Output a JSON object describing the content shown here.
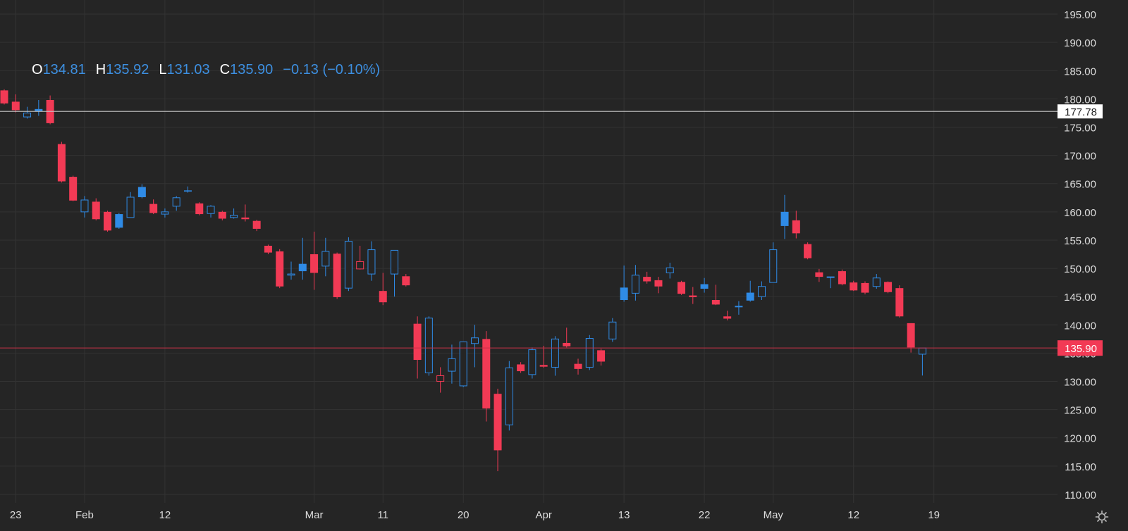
{
  "ohlc_header": {
    "o_label": "O",
    "o_value": "134.81",
    "h_label": "H",
    "h_value": "135.92",
    "l_label": "L",
    "l_value": "131.03",
    "c_label": "C",
    "c_value": "135.90",
    "change": "−0.13 (−0.10%)"
  },
  "colors": {
    "background": "#252525",
    "grid": "#333333",
    "up": "#2f8be6",
    "down": "#f23a55",
    "axis_text": "#dddddd",
    "ref_line": "#c8c8c8",
    "price_line": "#c83248"
  },
  "icons": {
    "settings": "gear-icon"
  },
  "chart_data": {
    "type": "candlestick",
    "ylim": [
      108.5,
      197.5
    ],
    "y_ticks": [
      "110.00",
      "115.00",
      "120.00",
      "125.00",
      "130.00",
      "135.00",
      "140.00",
      "145.00",
      "150.00",
      "155.00",
      "160.00",
      "165.00",
      "170.00",
      "175.00",
      "180.00",
      "185.00",
      "190.00",
      "195.00"
    ],
    "x_ticks": [
      {
        "label": "23",
        "index": 1
      },
      {
        "label": "Feb",
        "index": 7
      },
      {
        "label": "12",
        "index": 14
      },
      {
        "label": "Mar",
        "index": 27
      },
      {
        "label": "11",
        "index": 33
      },
      {
        "label": "20",
        "index": 40
      },
      {
        "label": "Apr",
        "index": 47
      },
      {
        "label": "13",
        "index": 54
      },
      {
        "label": "22",
        "index": 61
      },
      {
        "label": "May",
        "index": 67
      },
      {
        "label": "12",
        "index": 74
      },
      {
        "label": "19",
        "index": 81
      }
    ],
    "reference_line": {
      "value": 177.78,
      "label": "177.78"
    },
    "last_price": {
      "value": 135.9,
      "label": "135.90"
    },
    "candles": [
      {
        "o": 181.5,
        "h": 181.7,
        "l": 179.0,
        "c": 179.2,
        "filled": true
      },
      {
        "o": 179.5,
        "h": 180.8,
        "l": 177.6,
        "c": 178.0,
        "filled": true
      },
      {
        "o": 176.8,
        "h": 178.6,
        "l": 176.5,
        "c": 177.5,
        "filled": false
      },
      {
        "o": 177.8,
        "h": 179.8,
        "l": 177.0,
        "c": 178.2,
        "filled": true
      },
      {
        "o": 179.8,
        "h": 180.6,
        "l": 175.5,
        "c": 175.7,
        "filled": true
      },
      {
        "o": 172.0,
        "h": 172.4,
        "l": 165.2,
        "c": 165.4,
        "filled": true
      },
      {
        "o": 166.2,
        "h": 166.4,
        "l": 161.9,
        "c": 162.0,
        "filled": true
      },
      {
        "o": 160.0,
        "h": 162.8,
        "l": 159.0,
        "c": 162.1,
        "filled": false
      },
      {
        "o": 161.8,
        "h": 162.4,
        "l": 158.5,
        "c": 158.7,
        "filled": true
      },
      {
        "o": 160.0,
        "h": 160.2,
        "l": 156.5,
        "c": 156.7,
        "filled": true
      },
      {
        "o": 157.2,
        "h": 159.8,
        "l": 157.0,
        "c": 159.6,
        "filled": true
      },
      {
        "o": 159.0,
        "h": 163.5,
        "l": 159.0,
        "c": 162.6,
        "filled": false
      },
      {
        "o": 162.6,
        "h": 164.9,
        "l": 162.4,
        "c": 164.4,
        "filled": true
      },
      {
        "o": 161.4,
        "h": 162.2,
        "l": 159.6,
        "c": 159.8,
        "filled": true
      },
      {
        "o": 159.6,
        "h": 160.6,
        "l": 159.0,
        "c": 160.0,
        "filled": false
      },
      {
        "o": 161.0,
        "h": 162.8,
        "l": 160.2,
        "c": 162.5,
        "filled": false
      },
      {
        "o": 163.6,
        "h": 164.5,
        "l": 163.4,
        "c": 163.8,
        "filled": true
      },
      {
        "o": 161.5,
        "h": 161.7,
        "l": 159.4,
        "c": 159.6,
        "filled": true
      },
      {
        "o": 159.7,
        "h": 161.2,
        "l": 159.0,
        "c": 161.0,
        "filled": false
      },
      {
        "o": 160.0,
        "h": 160.2,
        "l": 158.5,
        "c": 158.8,
        "filled": true
      },
      {
        "o": 159.0,
        "h": 160.6,
        "l": 158.8,
        "c": 159.4,
        "filled": false
      },
      {
        "o": 159.0,
        "h": 161.3,
        "l": 158.3,
        "c": 158.7,
        "filled": true
      },
      {
        "o": 158.4,
        "h": 158.6,
        "l": 156.6,
        "c": 157.0,
        "filled": true
      },
      {
        "o": 154.0,
        "h": 154.2,
        "l": 152.5,
        "c": 152.8,
        "filled": true
      },
      {
        "o": 153.0,
        "h": 153.4,
        "l": 146.5,
        "c": 146.8,
        "filled": true
      },
      {
        "o": 148.8,
        "h": 151.2,
        "l": 148.0,
        "c": 149.0,
        "filled": false
      },
      {
        "o": 149.5,
        "h": 155.4,
        "l": 148.0,
        "c": 150.8,
        "filled": true
      },
      {
        "o": 152.5,
        "h": 156.5,
        "l": 146.2,
        "c": 149.2,
        "filled": true
      },
      {
        "o": 150.4,
        "h": 155.4,
        "l": 148.6,
        "c": 153.0,
        "filled": false
      },
      {
        "o": 152.6,
        "h": 152.8,
        "l": 144.6,
        "c": 144.9,
        "filled": true
      },
      {
        "o": 146.5,
        "h": 155.5,
        "l": 146.0,
        "c": 154.8,
        "filled": false
      },
      {
        "o": 151.2,
        "h": 154.0,
        "l": 149.8,
        "c": 149.9,
        "filled": false
      },
      {
        "o": 149.0,
        "h": 154.8,
        "l": 147.8,
        "c": 153.3,
        "filled": false
      },
      {
        "o": 146.0,
        "h": 149.2,
        "l": 143.5,
        "c": 144.0,
        "filled": true
      },
      {
        "o": 149.0,
        "h": 153.2,
        "l": 145.0,
        "c": 153.2,
        "filled": false
      },
      {
        "o": 148.6,
        "h": 149.0,
        "l": 146.8,
        "c": 147.0,
        "filled": true
      },
      {
        "o": 140.2,
        "h": 141.5,
        "l": 130.5,
        "c": 133.8,
        "filled": true
      },
      {
        "o": 131.5,
        "h": 141.5,
        "l": 131.0,
        "c": 141.2,
        "filled": false
      },
      {
        "o": 131.0,
        "h": 132.5,
        "l": 128.0,
        "c": 130.0,
        "filled": false
      },
      {
        "o": 131.8,
        "h": 136.5,
        "l": 129.6,
        "c": 134.0,
        "filled": false
      },
      {
        "o": 129.2,
        "h": 137.0,
        "l": 129.0,
        "c": 137.0,
        "filled": false
      },
      {
        "o": 136.7,
        "h": 140.0,
        "l": 132.5,
        "c": 137.7,
        "filled": false
      },
      {
        "o": 137.5,
        "h": 138.9,
        "l": 122.9,
        "c": 125.2,
        "filled": true
      },
      {
        "o": 127.8,
        "h": 128.7,
        "l": 114.1,
        "c": 117.8,
        "filled": true
      },
      {
        "o": 122.3,
        "h": 133.6,
        "l": 121.3,
        "c": 132.4,
        "filled": false
      },
      {
        "o": 133.0,
        "h": 133.4,
        "l": 131.5,
        "c": 131.8,
        "filled": true
      },
      {
        "o": 131.2,
        "h": 136.0,
        "l": 130.5,
        "c": 135.6,
        "filled": false
      },
      {
        "o": 132.9,
        "h": 136.3,
        "l": 132.4,
        "c": 132.6,
        "filled": true
      },
      {
        "o": 132.5,
        "h": 138.0,
        "l": 131.0,
        "c": 137.5,
        "filled": false
      },
      {
        "o": 136.8,
        "h": 139.5,
        "l": 136.0,
        "c": 136.2,
        "filled": true
      },
      {
        "o": 133.1,
        "h": 134.0,
        "l": 131.2,
        "c": 132.2,
        "filled": true
      },
      {
        "o": 132.5,
        "h": 138.2,
        "l": 132.0,
        "c": 137.6,
        "filled": false
      },
      {
        "o": 135.5,
        "h": 135.8,
        "l": 132.8,
        "c": 133.5,
        "filled": true
      },
      {
        "o": 137.5,
        "h": 141.2,
        "l": 137.0,
        "c": 140.5,
        "filled": false
      },
      {
        "o": 144.4,
        "h": 150.5,
        "l": 144.1,
        "c": 146.6,
        "filled": true
      },
      {
        "o": 145.6,
        "h": 150.6,
        "l": 144.3,
        "c": 148.8,
        "filled": false
      },
      {
        "o": 148.5,
        "h": 149.4,
        "l": 147.3,
        "c": 147.7,
        "filled": true
      },
      {
        "o": 147.9,
        "h": 148.5,
        "l": 145.6,
        "c": 146.8,
        "filled": true
      },
      {
        "o": 149.2,
        "h": 151.0,
        "l": 148.2,
        "c": 150.1,
        "filled": false
      },
      {
        "o": 147.6,
        "h": 147.8,
        "l": 145.3,
        "c": 145.5,
        "filled": true
      },
      {
        "o": 145.2,
        "h": 146.7,
        "l": 143.7,
        "c": 144.9,
        "filled": true
      },
      {
        "o": 146.4,
        "h": 148.3,
        "l": 145.7,
        "c": 147.2,
        "filled": true
      },
      {
        "o": 144.4,
        "h": 147.1,
        "l": 143.5,
        "c": 143.6,
        "filled": true
      },
      {
        "o": 141.5,
        "h": 142.5,
        "l": 140.8,
        "c": 141.1,
        "filled": true
      },
      {
        "o": 143.2,
        "h": 144.2,
        "l": 141.8,
        "c": 143.3,
        "filled": false
      },
      {
        "o": 144.3,
        "h": 147.8,
        "l": 144.1,
        "c": 145.7,
        "filled": true
      },
      {
        "o": 145.0,
        "h": 147.7,
        "l": 144.4,
        "c": 146.8,
        "filled": false
      },
      {
        "o": 147.5,
        "h": 154.6,
        "l": 147.5,
        "c": 153.3,
        "filled": false
      },
      {
        "o": 157.5,
        "h": 163.0,
        "l": 155.2,
        "c": 160.0,
        "filled": true
      },
      {
        "o": 158.5,
        "h": 160.2,
        "l": 155.3,
        "c": 156.2,
        "filled": true
      },
      {
        "o": 154.3,
        "h": 154.6,
        "l": 151.6,
        "c": 151.8,
        "filled": true
      },
      {
        "o": 149.3,
        "h": 149.9,
        "l": 147.6,
        "c": 148.5,
        "filled": true
      },
      {
        "o": 148.5,
        "h": 148.5,
        "l": 146.5,
        "c": 148.5,
        "filled": false
      },
      {
        "o": 149.5,
        "h": 149.8,
        "l": 147.0,
        "c": 147.2,
        "filled": true
      },
      {
        "o": 147.5,
        "h": 147.8,
        "l": 146.0,
        "c": 146.1,
        "filled": true
      },
      {
        "o": 147.4,
        "h": 147.7,
        "l": 145.4,
        "c": 145.7,
        "filled": true
      },
      {
        "o": 146.8,
        "h": 149.0,
        "l": 146.4,
        "c": 148.3,
        "filled": false
      },
      {
        "o": 147.6,
        "h": 147.7,
        "l": 145.6,
        "c": 145.8,
        "filled": true
      },
      {
        "o": 146.5,
        "h": 147.0,
        "l": 141.3,
        "c": 141.5,
        "filled": true
      },
      {
        "o": 140.3,
        "h": 140.3,
        "l": 135.1,
        "c": 136.0,
        "filled": true
      },
      {
        "o": 134.81,
        "h": 135.92,
        "l": 131.03,
        "c": 135.9,
        "filled": false
      }
    ]
  }
}
